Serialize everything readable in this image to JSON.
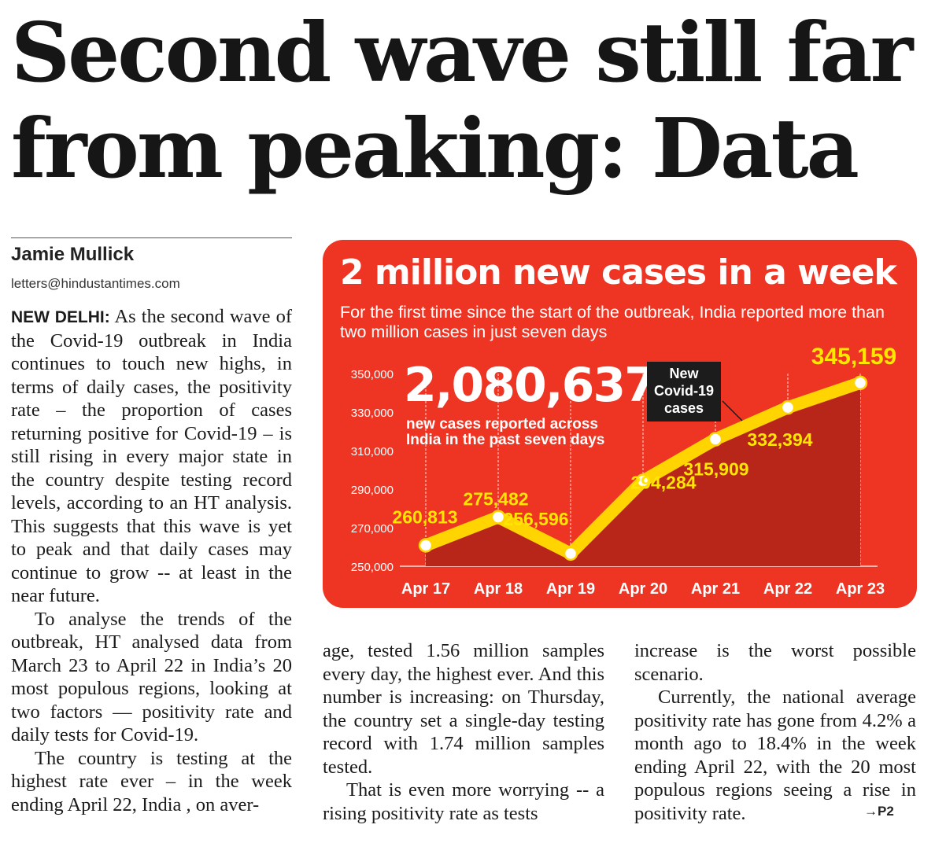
{
  "headline": "Second wave still far from peaking: Data",
  "byline": {
    "author": "Jamie Mullick",
    "email": "letters@hindustantimes.com"
  },
  "article": {
    "dateline": "NEW DELHI:",
    "p1": "As the second wave of the Covid-19 outbreak in India continues to touch new highs, in terms of daily cases, the positivity rate – the proportion of cases returning positive for Covid-19 – is still rising in every major state in the country despite testing record levels, according to an HT analysis. This suggests that this wave is yet to peak and that daily cases may continue to grow -- at least in the near future.",
    "p2": "To analyse the trends of the outbreak, HT analysed data from March 23 to April 22 in India’s 20 most populous regions, looking at two factors — positivity rate and daily tests for Covid-19.",
    "p3a": "The country is testing at the highest rate ever – in the week ending April 22, India , on aver-",
    "p3b": "age, tested 1.56 million samples every day, the highest ever. And this number is increasing: on Thursday, the country set a single-day testing record with 1.74 million samples tested.",
    "p4a": "That is even more worrying -- a rising positivity rate as tests",
    "p4b": "increase is the worst possible scenario.",
    "p5": "Currently, the national average positivity rate has gone from 4.2% a month ago to 18.4% in the week ending April 22, with the 20 most populous regions seeing a rise in positivity rate.",
    "continued": "→P2"
  },
  "colors": {
    "panel": "#ee3524",
    "area": "#b8261a",
    "line": "#ffd400",
    "label": "#ffe600",
    "legend_bg": "#1c1c1c"
  },
  "chart_data": {
    "type": "line",
    "title": "2 million new cases in a week",
    "subtitle": "For the first time since the start of the outbreak, India reported more than two million cases in just seven days",
    "highlight_value": "2,080,637",
    "highlight_caption": "new cases reported across India in the past seven days",
    "legend": "New Covid-19 cases",
    "categories": [
      "Apr 17",
      "Apr 18",
      "Apr 19",
      "Apr 20",
      "Apr 21",
      "Apr 22",
      "Apr 23"
    ],
    "values": [
      260813,
      275482,
      256596,
      294284,
      315909,
      332394,
      345159
    ],
    "value_labels": [
      "260,813",
      "275,482",
      "256,596",
      "294,284",
      "315,909",
      "332,394",
      "345,159"
    ],
    "y_ticks": [
      250000,
      270000,
      290000,
      310000,
      330000,
      350000
    ],
    "y_tick_labels": [
      "250,000",
      "270,000",
      "290,000",
      "310,000",
      "330,000",
      "350,000"
    ],
    "ylim": [
      250000,
      350000
    ],
    "grid": "vertical"
  }
}
